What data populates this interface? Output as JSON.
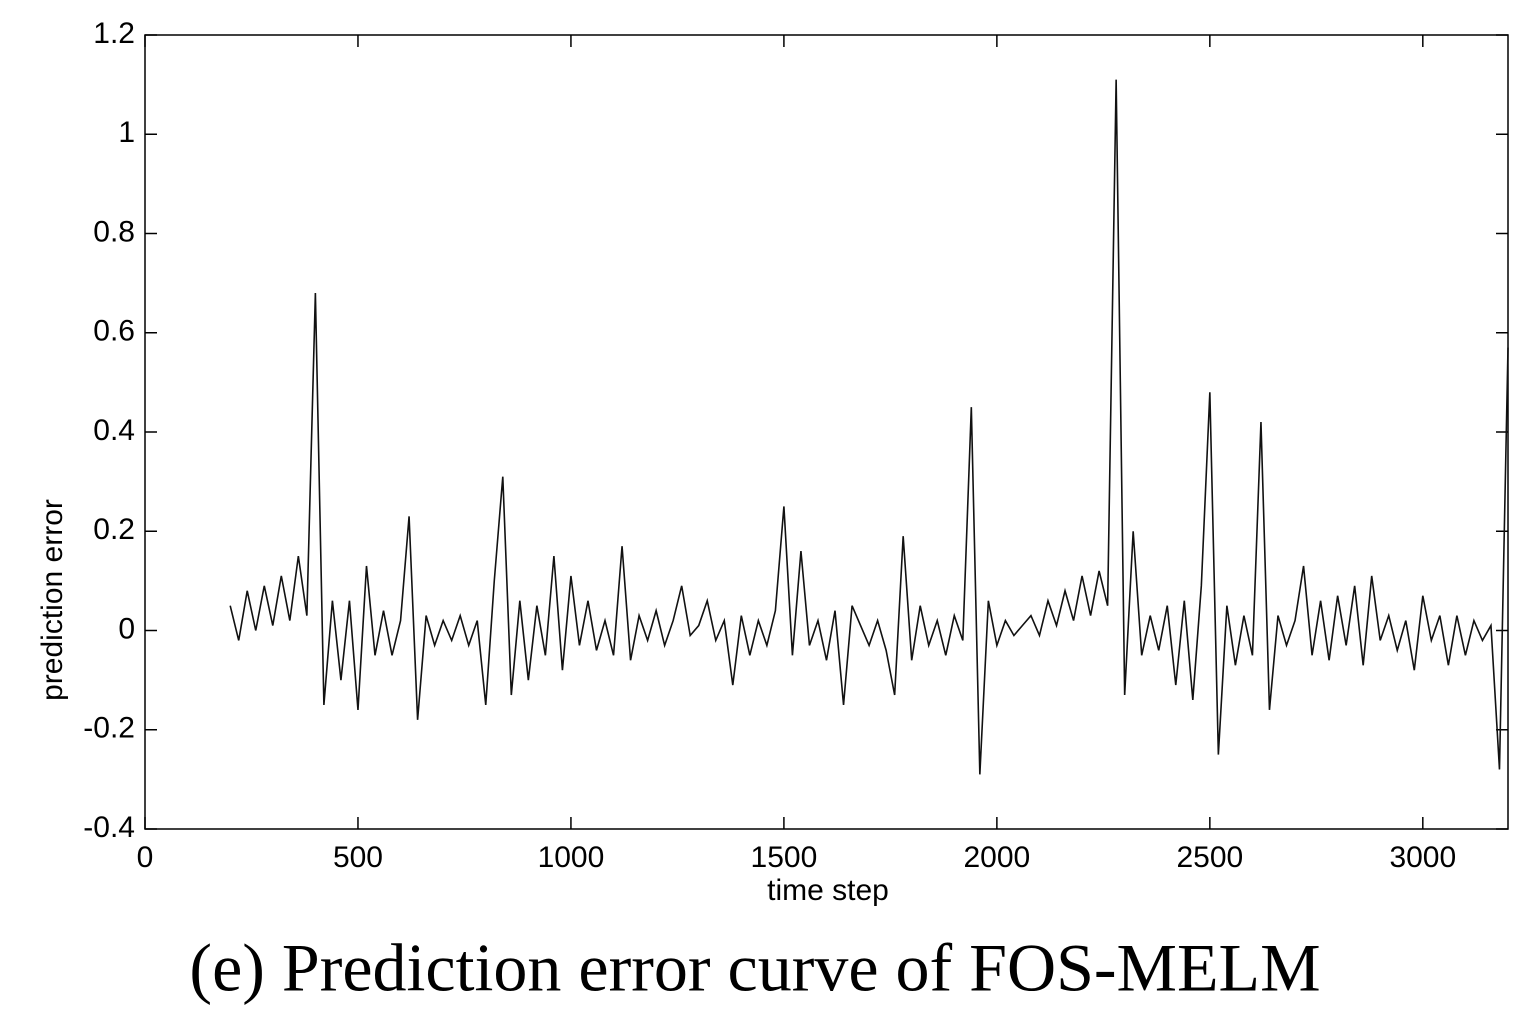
{
  "chart_data": {
    "type": "line",
    "caption": "(e) Prediction error curve of FOS-MELM",
    "x_label": "time step",
    "y_label": "prediction error",
    "color": "#111111",
    "xlim": [
      0,
      3200
    ],
    "xticks": [
      0,
      500,
      1000,
      1500,
      2000,
      2500,
      3000
    ],
    "ylim": [
      -0.4,
      1.2
    ],
    "yticks": [
      -0.4,
      -0.2,
      0,
      0.2,
      0.4,
      0.6,
      0.8,
      1,
      1.2
    ],
    "x": [
      200,
      220,
      240,
      260,
      280,
      300,
      320,
      340,
      360,
      380,
      400,
      420,
      440,
      460,
      480,
      500,
      520,
      540,
      560,
      580,
      600,
      620,
      640,
      660,
      680,
      700,
      720,
      740,
      760,
      780,
      800,
      820,
      840,
      860,
      880,
      900,
      920,
      940,
      960,
      980,
      1000,
      1020,
      1040,
      1060,
      1080,
      1100,
      1120,
      1140,
      1160,
      1180,
      1200,
      1220,
      1240,
      1260,
      1280,
      1300,
      1320,
      1340,
      1360,
      1380,
      1400,
      1420,
      1440,
      1460,
      1480,
      1500,
      1520,
      1540,
      1560,
      1580,
      1600,
      1620,
      1640,
      1660,
      1680,
      1700,
      1720,
      1740,
      1760,
      1780,
      1800,
      1820,
      1840,
      1860,
      1880,
      1900,
      1920,
      1940,
      1960,
      1980,
      2000,
      2020,
      2040,
      2060,
      2080,
      2100,
      2120,
      2140,
      2160,
      2180,
      2200,
      2220,
      2240,
      2260,
      2280,
      2300,
      2320,
      2340,
      2360,
      2380,
      2400,
      2420,
      2440,
      2460,
      2480,
      2500,
      2520,
      2540,
      2560,
      2580,
      2600,
      2620,
      2640,
      2660,
      2680,
      2700,
      2720,
      2740,
      2760,
      2780,
      2800,
      2820,
      2840,
      2860,
      2880,
      2900,
      2920,
      2940,
      2960,
      2980,
      3000,
      3020,
      3040,
      3060,
      3080,
      3100,
      3120,
      3140,
      3160,
      3180,
      3200
    ],
    "values": [
      0.05,
      -0.02,
      0.08,
      0,
      0.09,
      0.01,
      0.11,
      0.02,
      0.15,
      0.03,
      0.68,
      -0.15,
      0.06,
      -0.1,
      0.06,
      -0.16,
      0.13,
      -0.05,
      0.04,
      -0.05,
      0.02,
      0.23,
      -0.18,
      0.03,
      -0.03,
      0.02,
      -0.02,
      0.03,
      -0.03,
      0.02,
      -0.15,
      0.1,
      0.31,
      -0.13,
      0.06,
      -0.1,
      0.05,
      -0.05,
      0.15,
      -0.08,
      0.11,
      -0.03,
      0.06,
      -0.04,
      0.02,
      -0.05,
      0.17,
      -0.06,
      0.03,
      -0.02,
      0.04,
      -0.03,
      0.02,
      0.09,
      -0.01,
      0.01,
      0.06,
      -0.02,
      0.02,
      -0.11,
      0.03,
      -0.05,
      0.02,
      -0.03,
      0.04,
      0.25,
      -0.05,
      0.16,
      -0.03,
      0.02,
      -0.06,
      0.04,
      -0.15,
      0.05,
      0.01,
      -0.03,
      0.02,
      -0.04,
      -0.13,
      0.19,
      -0.06,
      0.05,
      -0.03,
      0.02,
      -0.05,
      0.03,
      -0.02,
      0.45,
      -0.29,
      0.06,
      -0.03,
      0.02,
      -0.01,
      0.01,
      0.03,
      -0.01,
      0.06,
      0.01,
      0.08,
      0.02,
      0.11,
      0.03,
      0.12,
      0.05,
      1.11,
      -0.13,
      0.2,
      -0.05,
      0.03,
      -0.04,
      0.05,
      -0.11,
      0.06,
      -0.14,
      0.09,
      0.48,
      -0.25,
      0.05,
      -0.07,
      0.03,
      -0.05,
      0.42,
      -0.16,
      0.03,
      -0.03,
      0.02,
      0.13,
      -0.05,
      0.06,
      -0.06,
      0.07,
      -0.03,
      0.09,
      -0.07,
      0.11,
      -0.02,
      0.03,
      -0.04,
      0.02,
      -0.08,
      0.07,
      -0.02,
      0.03,
      -0.07,
      0.03,
      -0.05,
      0.02,
      -0.02,
      0.01,
      -0.28,
      0.57
    ]
  }
}
